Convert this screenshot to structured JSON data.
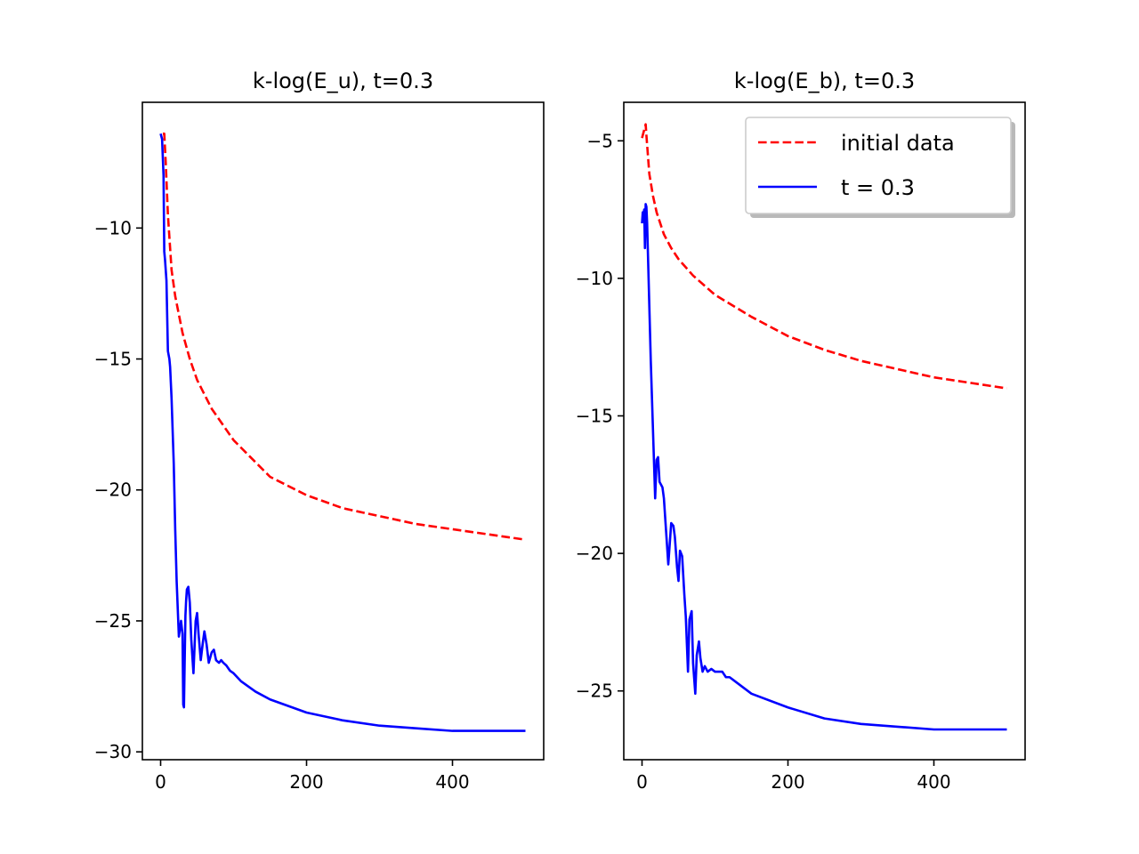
{
  "chart_data": [
    {
      "type": "line",
      "title": "k-log(E_u), t=0.3",
      "xlabel": "",
      "ylabel": "",
      "xlim": [
        -25,
        525
      ],
      "ylim": [
        -30.3,
        -5.2
      ],
      "xticks": [
        0,
        200,
        400
      ],
      "xtick_labels": [
        "0",
        "200",
        "400"
      ],
      "yticks": [
        -10,
        -15,
        -20,
        -25,
        -30
      ],
      "ytick_labels": [
        "−10",
        "−15",
        "−20",
        "−25",
        "−30"
      ],
      "grid": false,
      "series": [
        {
          "name": "initial data",
          "color": "#ff0000",
          "style": "dashed",
          "x": [
            3,
            5,
            7,
            10,
            15,
            20,
            30,
            40,
            50,
            70,
            100,
            150,
            200,
            250,
            300,
            350,
            400,
            450,
            500
          ],
          "y": [
            -6.4,
            -6.4,
            -7.5,
            -9.5,
            -11.6,
            -12.6,
            -14.0,
            -15.0,
            -15.8,
            -16.9,
            -18.1,
            -19.5,
            -20.2,
            -20.7,
            -21.0,
            -21.3,
            -21.5,
            -21.7,
            -21.9
          ]
        },
        {
          "name": "t = 0.3",
          "color": "#0000ff",
          "style": "solid",
          "x": [
            0,
            2,
            4,
            5,
            6,
            8,
            10,
            12,
            13,
            15,
            18,
            20,
            22,
            25,
            28,
            30,
            31,
            32,
            33,
            34,
            35,
            36,
            38,
            40,
            42,
            45,
            48,
            50,
            52,
            55,
            58,
            60,
            63,
            66,
            70,
            73,
            76,
            80,
            83,
            86,
            90,
            95,
            100,
            110,
            130,
            150,
            200,
            250,
            300,
            350,
            400,
            450,
            500
          ],
          "y": [
            -6.4,
            -6.6,
            -8.0,
            -10.9,
            -11.2,
            -12.0,
            -14.7,
            -15.0,
            -15.3,
            -16.5,
            -19.0,
            -21.5,
            -23.5,
            -25.6,
            -25.0,
            -25.5,
            -28.2,
            -28.3,
            -26.5,
            -24.8,
            -24.2,
            -23.8,
            -23.7,
            -24.3,
            -25.7,
            -27.0,
            -25.0,
            -24.7,
            -25.5,
            -26.5,
            -25.8,
            -25.4,
            -25.9,
            -26.6,
            -26.2,
            -26.1,
            -26.5,
            -26.6,
            -26.5,
            -26.6,
            -26.7,
            -26.9,
            -27.0,
            -27.3,
            -27.7,
            -28.0,
            -28.5,
            -28.8,
            -29.0,
            -29.1,
            -29.2,
            -29.2,
            -29.2
          ]
        }
      ]
    },
    {
      "type": "line",
      "title": "k-log(E_b), t=0.3",
      "xlabel": "",
      "ylabel": "",
      "xlim": [
        -25,
        525
      ],
      "ylim": [
        -27.5,
        -3.6
      ],
      "xticks": [
        0,
        200,
        400
      ],
      "xtick_labels": [
        "0",
        "200",
        "400"
      ],
      "yticks": [
        -5,
        -10,
        -15,
        -20,
        -25
      ],
      "ytick_labels": [
        "−5",
        "−10",
        "−15",
        "−20",
        "−25"
      ],
      "grid": false,
      "legend": "top-right",
      "series": [
        {
          "name": "initial data",
          "color": "#ff0000",
          "style": "dashed",
          "x": [
            0,
            2,
            4,
            5,
            6,
            8,
            10,
            15,
            20,
            30,
            40,
            50,
            70,
            100,
            150,
            200,
            250,
            300,
            350,
            400,
            450,
            500
          ],
          "y": [
            -4.9,
            -4.7,
            -4.5,
            -4.4,
            -4.8,
            -5.5,
            -6.2,
            -7.0,
            -7.6,
            -8.4,
            -8.9,
            -9.3,
            -9.9,
            -10.6,
            -11.4,
            -12.1,
            -12.6,
            -13.0,
            -13.3,
            -13.6,
            -13.8,
            -14.0
          ]
        },
        {
          "name": "t = 0.3",
          "color": "#0000ff",
          "style": "solid",
          "x": [
            0,
            1,
            2,
            3,
            4,
            5,
            6,
            7,
            8,
            10,
            12,
            15,
            18,
            20,
            22,
            24,
            26,
            28,
            30,
            33,
            36,
            40,
            43,
            45,
            48,
            50,
            52,
            55,
            58,
            60,
            63,
            65,
            68,
            70,
            73,
            75,
            78,
            80,
            83,
            86,
            90,
            95,
            100,
            105,
            110,
            115,
            120,
            130,
            150,
            200,
            250,
            300,
            350,
            400,
            450,
            500
          ],
          "y": [
            -8.0,
            -7.6,
            -7.7,
            -7.5,
            -8.9,
            -7.3,
            -7.4,
            -8.0,
            -9.0,
            -11.0,
            -13.0,
            -15.5,
            -18.0,
            -16.6,
            -16.5,
            -17.4,
            -17.5,
            -17.6,
            -18.0,
            -19.2,
            -20.4,
            -18.9,
            -19.0,
            -19.4,
            -20.5,
            -21.0,
            -19.9,
            -20.1,
            -21.5,
            -22.3,
            -24.3,
            -22.4,
            -22.1,
            -24.0,
            -25.1,
            -23.7,
            -23.2,
            -23.8,
            -24.3,
            -24.1,
            -24.3,
            -24.2,
            -24.3,
            -24.3,
            -24.3,
            -24.5,
            -24.5,
            -24.7,
            -25.1,
            -25.6,
            -26.0,
            -26.2,
            -26.3,
            -26.4,
            -26.4,
            -26.4
          ]
        }
      ]
    }
  ]
}
